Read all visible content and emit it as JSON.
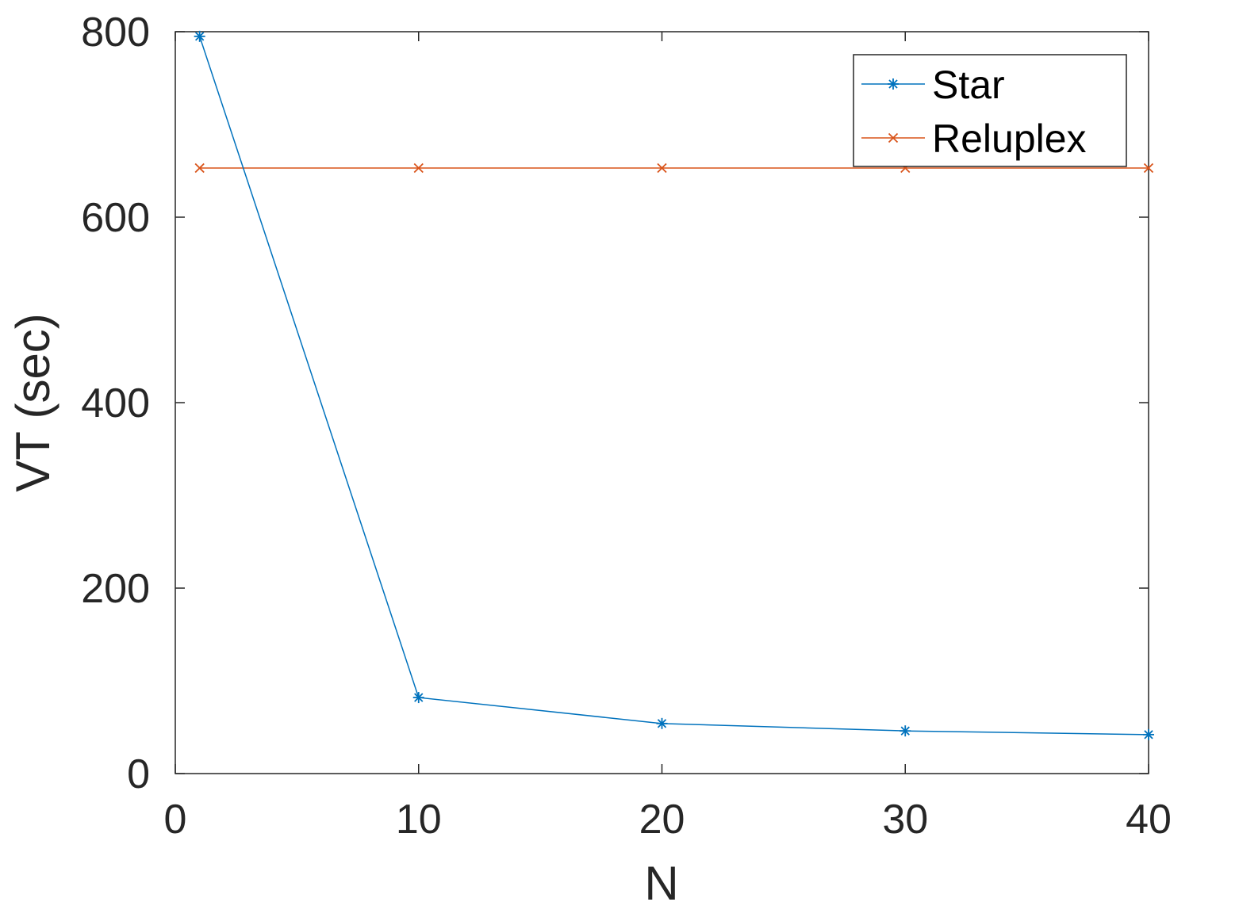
{
  "chart_data": {
    "type": "line",
    "xlabel": "N",
    "ylabel": "VT (sec)",
    "xlim": [
      0,
      40
    ],
    "ylim": [
      0,
      800
    ],
    "xticks": [
      0,
      10,
      20,
      30,
      40
    ],
    "yticks": [
      0,
      200,
      400,
      600,
      800
    ],
    "xtick_labels": [
      "0",
      "10",
      "20",
      "30",
      "40"
    ],
    "ytick_labels": [
      "0",
      "200",
      "400",
      "600",
      "800"
    ],
    "grid": false,
    "legend_position": "top-right",
    "series": [
      {
        "name": "Star",
        "marker": "asterisk",
        "color": "#0072BD",
        "x": [
          1,
          10,
          20,
          30,
          40
        ],
        "y": [
          795,
          82,
          54,
          46,
          42
        ]
      },
      {
        "name": "Reluplex",
        "marker": "x",
        "color": "#D95319",
        "x": [
          1,
          10,
          20,
          30,
          40
        ],
        "y": [
          653,
          653,
          653,
          653,
          653
        ]
      }
    ]
  }
}
